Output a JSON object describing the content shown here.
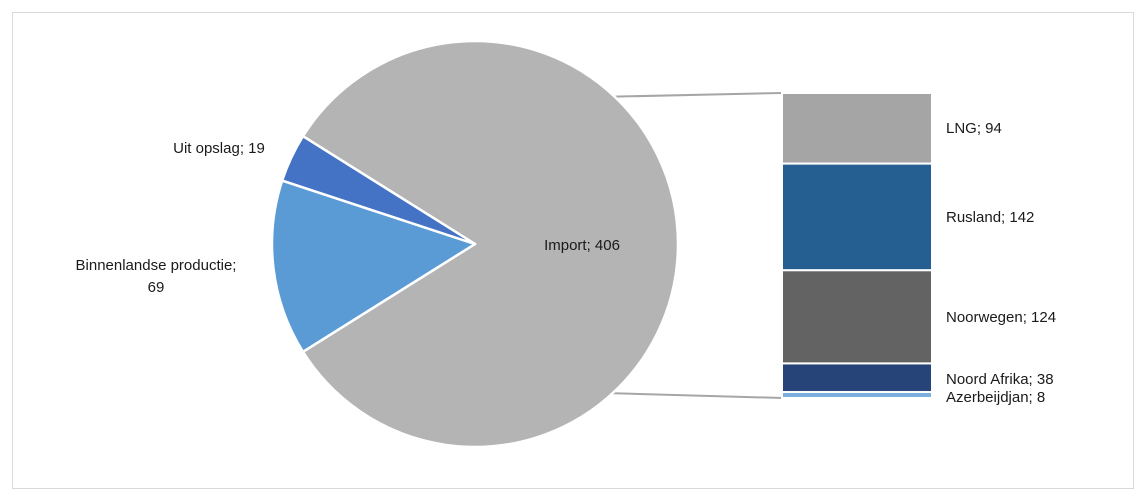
{
  "chart_data": {
    "type": "pie",
    "title": "",
    "pie": {
      "slices": [
        {
          "label": "Import",
          "value": 406,
          "color": "#b4b4b4",
          "text": "Import; 406"
        },
        {
          "label": "Binnenlandse productie",
          "value": 69,
          "color": "#5b9bd5",
          "text_line1": "Binnenlandse productie;",
          "text_line2": "69"
        },
        {
          "label": "Uit opslag",
          "value": 19,
          "color": "#4472c4",
          "text": "Uit opslag; 19"
        }
      ]
    },
    "breakdown": {
      "of": "Import",
      "segments": [
        {
          "label": "LNG",
          "value": 94,
          "color": "#a5a5a5",
          "text": "LNG; 94"
        },
        {
          "label": "Rusland",
          "value": 142,
          "color": "#255e91",
          "text": "Rusland; 142"
        },
        {
          "label": "Noorwegen",
          "value": 124,
          "color": "#636363",
          "text": "Noorwegen; 124"
        },
        {
          "label": "Noord Afrika",
          "value": 38,
          "color": "#264478",
          "text": "Noord Afrika; 38"
        },
        {
          "label": "Azerbeijdjan",
          "value": 8,
          "color": "#7cafdd",
          "text": "Azerbeijdjan; 8"
        }
      ]
    }
  }
}
